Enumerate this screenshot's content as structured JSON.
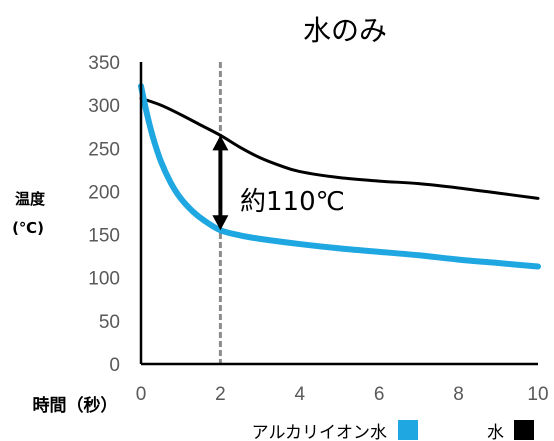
{
  "chart_data": {
    "type": "line",
    "title": "水のみ",
    "ylabel_line1": "温度",
    "ylabel_line2": "(℃)",
    "xlabel": "時間（秒）",
    "xlim": [
      0,
      10
    ],
    "ylim": [
      0,
      350
    ],
    "xticks": [
      0,
      2,
      4,
      6,
      8,
      10
    ],
    "yticks": [
      0,
      50,
      100,
      150,
      200,
      250,
      300,
      350
    ],
    "grid": false,
    "legend_placement": "bottom",
    "annotation": {
      "text": "約110℃",
      "x": 2,
      "y_from": 155,
      "y_to": 265
    },
    "reference_line_x": 2,
    "series": [
      {
        "name": "アルカリイオン水",
        "color": "#1ea7e1",
        "x": [
          0,
          0.15,
          0.3,
          0.5,
          0.75,
          1.0,
          1.3,
          1.6,
          2.0,
          2.5,
          3.0,
          4.0,
          5.0,
          6.0,
          7.0,
          8.0,
          9.0,
          10.0
        ],
        "y": [
          322,
          290,
          263,
          235,
          210,
          192,
          177,
          166,
          155,
          149,
          145,
          139,
          134,
          130,
          126,
          121,
          117,
          113
        ]
      },
      {
        "name": "水",
        "color": "#000000",
        "x": [
          0,
          0.5,
          1.0,
          1.5,
          2.0,
          2.5,
          3.0,
          3.5,
          4.0,
          5.0,
          6.0,
          7.0,
          8.0,
          9.0,
          10.0
        ],
        "y": [
          308,
          300,
          289,
          277,
          265,
          251,
          239,
          230,
          223,
          216,
          212,
          209,
          204,
          198,
          192
        ]
      }
    ]
  }
}
